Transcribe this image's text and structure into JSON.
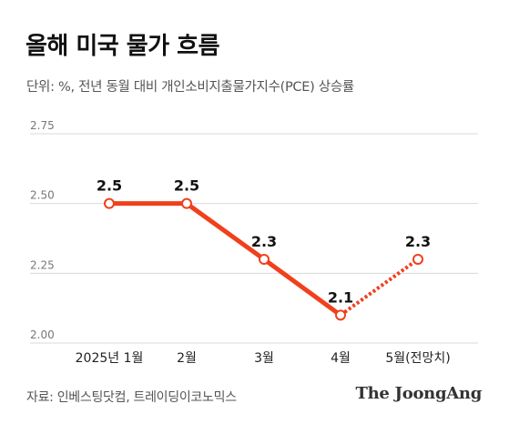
{
  "title": "올해 미국 물가 흐름",
  "subtitle": "단위: %, 전년 동월 대비 개인소비지출물가지수(PCE) 상승률",
  "source": "자료: 인베스팅닷컴, 트레이딩이코노믹스",
  "brand": "The JoongAng",
  "colors": {
    "line": "#f0401c",
    "grid": "#d9d9d9"
  },
  "chart_data": {
    "type": "line",
    "title": "올해 미국 물가 흐름",
    "xlabel": "",
    "ylabel": "",
    "categories": [
      "2025년 1월",
      "2월",
      "3월",
      "4월",
      "5월(전망치)"
    ],
    "values": [
      2.5,
      2.5,
      2.3,
      2.1,
      2.3
    ],
    "value_labels": [
      "2.5",
      "2.5",
      "2.3",
      "2.1",
      "2.3"
    ],
    "projected_from_index": 3,
    "ylim": [
      2.0,
      2.75
    ],
    "yticks": [
      "2.75",
      "2.50",
      "2.25",
      "2.00"
    ],
    "ytick_values": [
      2.75,
      2.5,
      2.25,
      2.0
    ],
    "grid": true
  }
}
